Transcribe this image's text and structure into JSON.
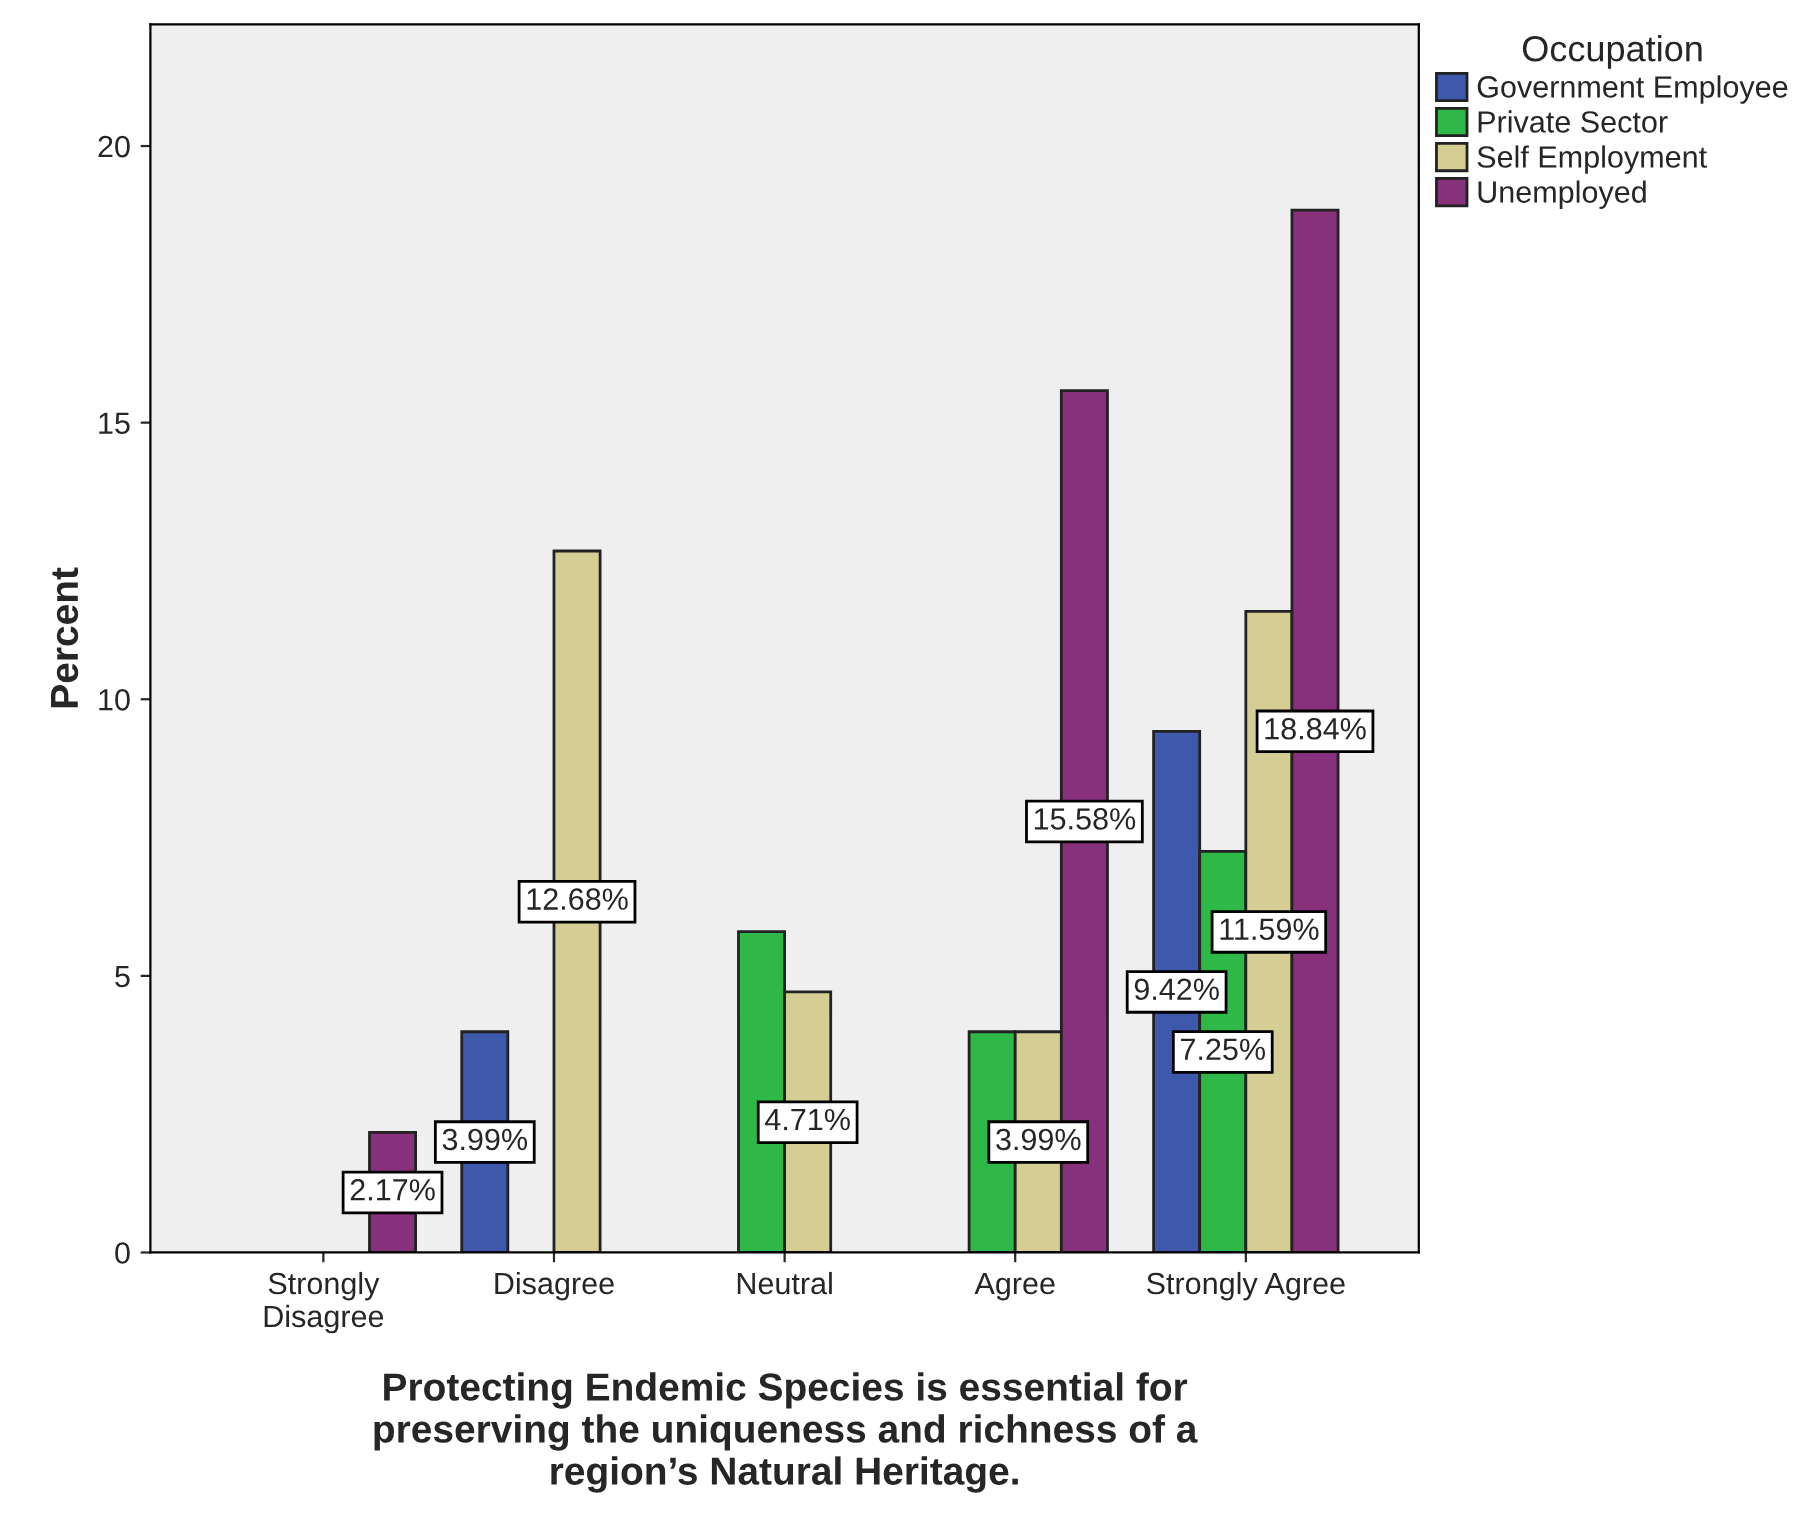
{
  "chart_data": {
    "type": "bar",
    "categories": [
      "Strongly\nDisagree",
      "Disagree",
      "Neutral",
      "Agree",
      "Strongly Agree"
    ],
    "series": [
      {
        "name": "Government Employee",
        "color": "#3e58ac",
        "values": [
          null,
          3.99,
          null,
          null,
          9.42
        ],
        "value_labels": [
          null,
          "3.99%",
          null,
          null,
          "9.42%"
        ]
      },
      {
        "name": "Private Sector",
        "color": "#2eb848",
        "values": [
          null,
          null,
          5.8,
          3.99,
          7.25
        ],
        "value_labels": [
          null,
          null,
          null,
          null,
          "7.25%"
        ]
      },
      {
        "name": "Self Employment",
        "color": "#d4ce94",
        "values": [
          null,
          12.68,
          4.71,
          3.99,
          11.59
        ],
        "value_labels": [
          null,
          "12.68%",
          "4.71%",
          "3.99%",
          "11.59%"
        ]
      },
      {
        "name": "Unemployed",
        "color": "#87317d",
        "values": [
          2.17,
          null,
          null,
          15.58,
          18.84
        ],
        "value_labels": [
          "2.17%",
          null,
          null,
          "15.58%",
          "18.84%"
        ]
      }
    ],
    "xlabel": "Protecting Endemic Species is essential for\npreserving the uniqueness and richness of a\nregion’s Natural Heritage.",
    "ylabel": "Percent",
    "legend_title": "Occupation",
    "legend": "top right",
    "ylim": [
      0,
      22.2
    ],
    "yticks": [
      0,
      5,
      10,
      15,
      20
    ],
    "grid": false
  }
}
